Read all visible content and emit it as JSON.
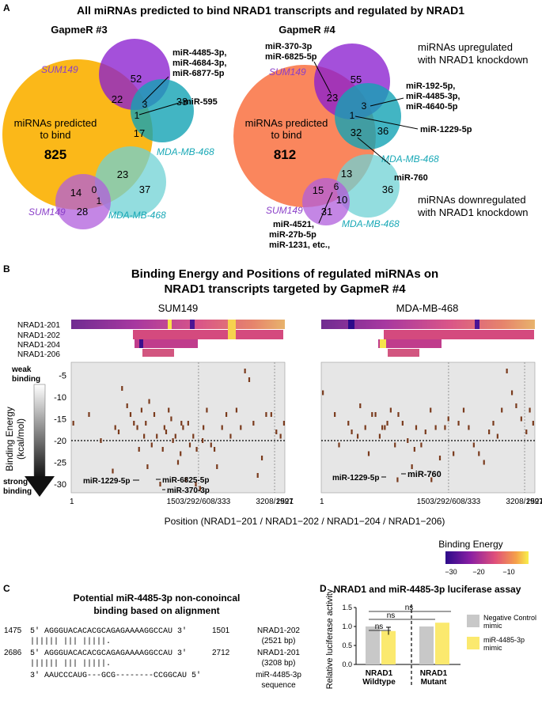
{
  "panelA": {
    "letter": "A",
    "title": "All miRNAs predicted to bind NRAD1 transcripts and regulated by NRAD1",
    "left": {
      "heading": "GapmeR #3",
      "big_label_1": "miRNAs predicted",
      "big_label_2": "to bind",
      "big_count": "825",
      "sum149_up_label": "SUM149",
      "mda_up_label": "MDA-MB-468",
      "sum149_down_label": "SUM149",
      "mda_down_label": "MDA-MB-468",
      "n52": "52",
      "n22": "22",
      "n3": "3",
      "n1a": "1",
      "n38": "38",
      "n17": "17",
      "n23": "23",
      "n37": "37",
      "n14": "14",
      "n0": "0",
      "n1b": "1",
      "n28": "28",
      "callout_1": "miR-4485-3p,",
      "callout_2": "miR-4684-3p,",
      "callout_3": "miR-6877-5p",
      "callout_595": "miR-595"
    },
    "right": {
      "heading": "GapmeR #4",
      "big_label_1": "miRNAs predicted",
      "big_label_2": "to bind",
      "big_count": "812",
      "sum149_up_label": "SUM149",
      "mda_up_label": "MDA-MB-468",
      "sum149_down_label": "SUM149",
      "mda_down_label": "MDA-MB-468",
      "n55": "55",
      "n23": "23",
      "n3": "3",
      "n1": "1",
      "n36a": "36",
      "n32": "32",
      "n13": "13",
      "n36b": "36",
      "n15": "15",
      "n6": "6",
      "n10": "10",
      "n31": "31",
      "callout_top_1": "miR-370-3p",
      "callout_top_2": "miR-6825-5p",
      "callout_right_1": "miR-192-5p,",
      "callout_right_2": "miR-4485-3p,",
      "callout_right_3": "miR-4640-5p",
      "callout_1229": "miR-1229-5p",
      "callout_760": "miR-760",
      "callout_bottom_1": "miR-4521,",
      "callout_bottom_2": "miR-27b-5p",
      "callout_bottom_3": "miR-1231, etc.,",
      "legend_up_1": "miRNAs upregulated",
      "legend_up_2": "with NRAD1 knockdown",
      "legend_down_1": "miRNAs downregulated",
      "legend_down_2": "with NRAD1 knockdown"
    }
  },
  "panelB": {
    "letter": "B",
    "title_1": "Binding Energy and Positions of regulated miRNAs on",
    "title_2": "NRAD1 transcripts targeted by GapmeR #4",
    "left_title": "SUM149",
    "right_title": "MDA-MB-468",
    "transcripts": [
      "NRAD1-201",
      "NRAD1-202",
      "NRAD1-204",
      "NRAD1-206"
    ],
    "weak_label_1": "weak",
    "weak_label_2": "binding",
    "strong_label_1": "strong",
    "strong_label_2": "binding",
    "ylabel_1": "Binding Energy",
    "ylabel_2": "(kcal/mol)",
    "xlabel": "Position (NRAD1−201 / NRAD1−202 / NRAD1−204 / NRAD1−206)",
    "legend_title": "Binding Energy",
    "legend_ticks": [
      "−30",
      "−20",
      "−10"
    ],
    "left_annotations": [
      "miR-1229-5p",
      "miR-6825-5p",
      "miR-370-3p"
    ],
    "right_annotations": [
      "miR-1229-5p",
      "miR-760"
    ]
  },
  "panelC": {
    "letter": "C",
    "title_1": "Potential miR-4485-3p non-conoincal",
    "title_2": "binding based on alignment",
    "rows": [
      {
        "start": "1475",
        "seq": "5' AGGGUACACACGCAGAGAAAAGGCCAU 3'",
        "end": "1501",
        "name": "NRAD1-202",
        "len": "(2521 bp)"
      },
      {
        "start": "2686",
        "seq": "5' AGGGUACACACGCAGAGAAAAGGCCAU 3'",
        "end": "2712",
        "name": "NRAD1-201",
        "len": "(3208 bp)"
      },
      {
        "start": "",
        "seq": "3' AAUCCCAUG---GCG--------CCGGCAU 5'",
        "end": "",
        "name": "miR-4485-3p",
        "len": "sequence"
      }
    ],
    "pairing": "  ||||||    |||        |||||. "
  },
  "panelD": {
    "letter": "D",
    "title": "NRAD1 and miR-4485-3p luciferase assay",
    "legend_neg_1": "Negative Control",
    "legend_neg_2": "mimic",
    "legend_mir_1": "miR-4485-3p",
    "legend_mir_2": "mimic",
    "xlabel_wt_1": "NRAD1",
    "xlabel_wt_2": "Wildtype",
    "xlabel_mut_1": "NRAD1",
    "xlabel_mut_2": "Mutant",
    "sig_1": "ns",
    "sig_2": "ns",
    "sig_3": "ns",
    "colors": {
      "neg": "#c8c8c8",
      "mir": "#fbe96e"
    }
  },
  "chart_data": [
    {
      "type": "scatter",
      "title": "SUM149",
      "xlabel": "Position (NRAD1−201 / NRAD1−202 / NRAD1−204 / NRAD1−206)",
      "ylabel": "Binding Energy (kcal/mol)",
      "xlim": [
        1,
        2521
      ],
      "ylim": [
        -32,
        -2
      ],
      "x_tick_labels": [
        "1",
        "1503/292/608/333",
        "3208/1997",
        "2521"
      ],
      "y_tick_labels": [
        "-5",
        "-10",
        "-15",
        "-20",
        "-25",
        "-30"
      ],
      "threshold": -20,
      "x": [
        25,
        210,
        350,
        490,
        520,
        560,
        600,
        660,
        700,
        740,
        780,
        800,
        830,
        860,
        880,
        920,
        950,
        980,
        1010,
        1050,
        1080,
        1100,
        1120,
        1150,
        1180,
        1200,
        1230,
        1260,
        1290,
        1320,
        1350,
        1380,
        1400,
        1440,
        1470,
        1520,
        1560,
        1600,
        1650,
        1690,
        1720,
        1780,
        1830,
        1880,
        1950,
        2000,
        2050,
        2100,
        2150,
        2200,
        2250,
        2300,
        2360,
        2420,
        2470,
        2510,
        1480,
        1550,
        900,
        1300
      ],
      "y": [
        -16,
        -14,
        -20,
        -27,
        -17,
        -18,
        -8,
        -12,
        -14,
        -16,
        -17,
        -22,
        -13,
        -19,
        -16,
        -11,
        -21,
        -14,
        -19,
        -30,
        -22,
        -17,
        -18,
        -13,
        -15,
        -20,
        -19,
        -25,
        -23,
        -17,
        -29,
        -16,
        -21,
        -19,
        -30,
        -31,
        -17,
        -13,
        -21,
        -22,
        -26,
        -17,
        -14,
        -19,
        -13,
        -17,
        -4,
        -6,
        -16,
        -28,
        -24,
        -14,
        -14,
        -18,
        -19,
        -16,
        -22,
        -20,
        -26,
        -16
      ]
    },
    {
      "type": "scatter",
      "title": "MDA-MB-468",
      "xlabel": "Position (NRAD1−201 / NRAD1−202 / NRAD1−204 / NRAD1−206)",
      "ylabel": "Binding Energy (kcal/mol)",
      "xlim": [
        1,
        2521
      ],
      "ylim": [
        -32,
        -2
      ],
      "x_tick_labels": [
        "1",
        "1503/292/608/333",
        "3208/1997",
        "2521"
      ],
      "y_tick_labels": [
        "-5",
        "-10",
        "-15",
        "-20",
        "-25",
        "-30"
      ],
      "threshold": -20,
      "x": [
        20,
        160,
        210,
        320,
        360,
        430,
        460,
        520,
        560,
        600,
        640,
        690,
        720,
        750,
        780,
        820,
        870,
        910,
        960,
        1020,
        1070,
        1120,
        1180,
        1230,
        1290,
        1350,
        1400,
        1460,
        1500,
        1560,
        1620,
        1680,
        1740,
        1800,
        1860,
        1920,
        1980,
        2030,
        2080,
        2130,
        2190,
        2250,
        2300,
        2360,
        2420,
        2460,
        2500,
        900,
        1100,
        1300
      ],
      "y": [
        -9,
        -14,
        -21,
        -16,
        -18,
        -19,
        -12,
        -17,
        -23,
        -14,
        -14,
        -19,
        -17,
        -17,
        -16,
        -13,
        -21,
        -14,
        -16,
        -20,
        -26,
        -17,
        -21,
        -18,
        -13,
        -17,
        -24,
        -17,
        -15,
        -23,
        -16,
        -13,
        -17,
        -21,
        -23,
        -25,
        -18,
        -16,
        -19,
        -13,
        -4,
        -9,
        -12,
        -15,
        -18,
        -13,
        -16,
        -29,
        -22,
        -29
      ]
    },
    {
      "type": "bar",
      "title": "NRAD1 and miR-4485-3p luciferase assay",
      "ylabel": "Relative luciferase activity",
      "ylim": [
        0,
        1.5
      ],
      "y_tick_labels": [
        "0.0",
        "0.5",
        "1.0",
        "1.5"
      ],
      "categories": [
        "NRAD1 Wildtype",
        "NRAD1 Mutant"
      ],
      "series": [
        {
          "name": "Negative Control mimic",
          "values": [
            1.0,
            1.0
          ]
        },
        {
          "name": "miR-4485-3p mimic",
          "values": [
            0.88,
            1.1
          ]
        }
      ],
      "error": [
        [
          0,
          0.1
        ],
        [
          0,
          0
        ]
      ]
    }
  ]
}
